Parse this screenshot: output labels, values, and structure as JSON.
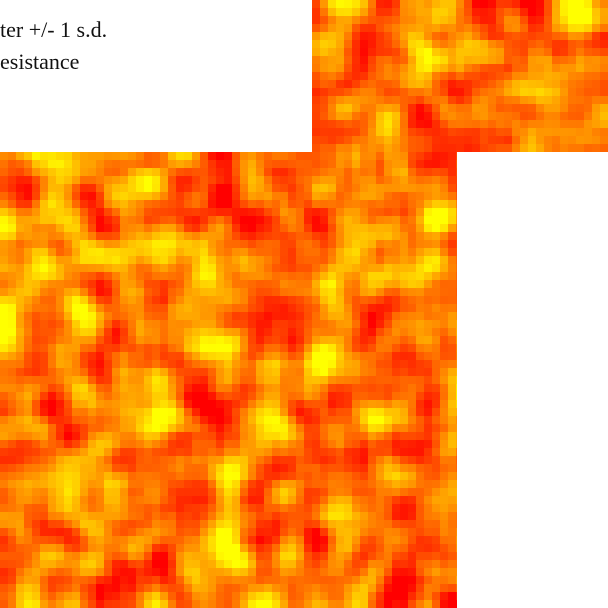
{
  "legend": {
    "lines": [
      "ter +/- 1 s.d.",
      "esistance"
    ]
  }
}
